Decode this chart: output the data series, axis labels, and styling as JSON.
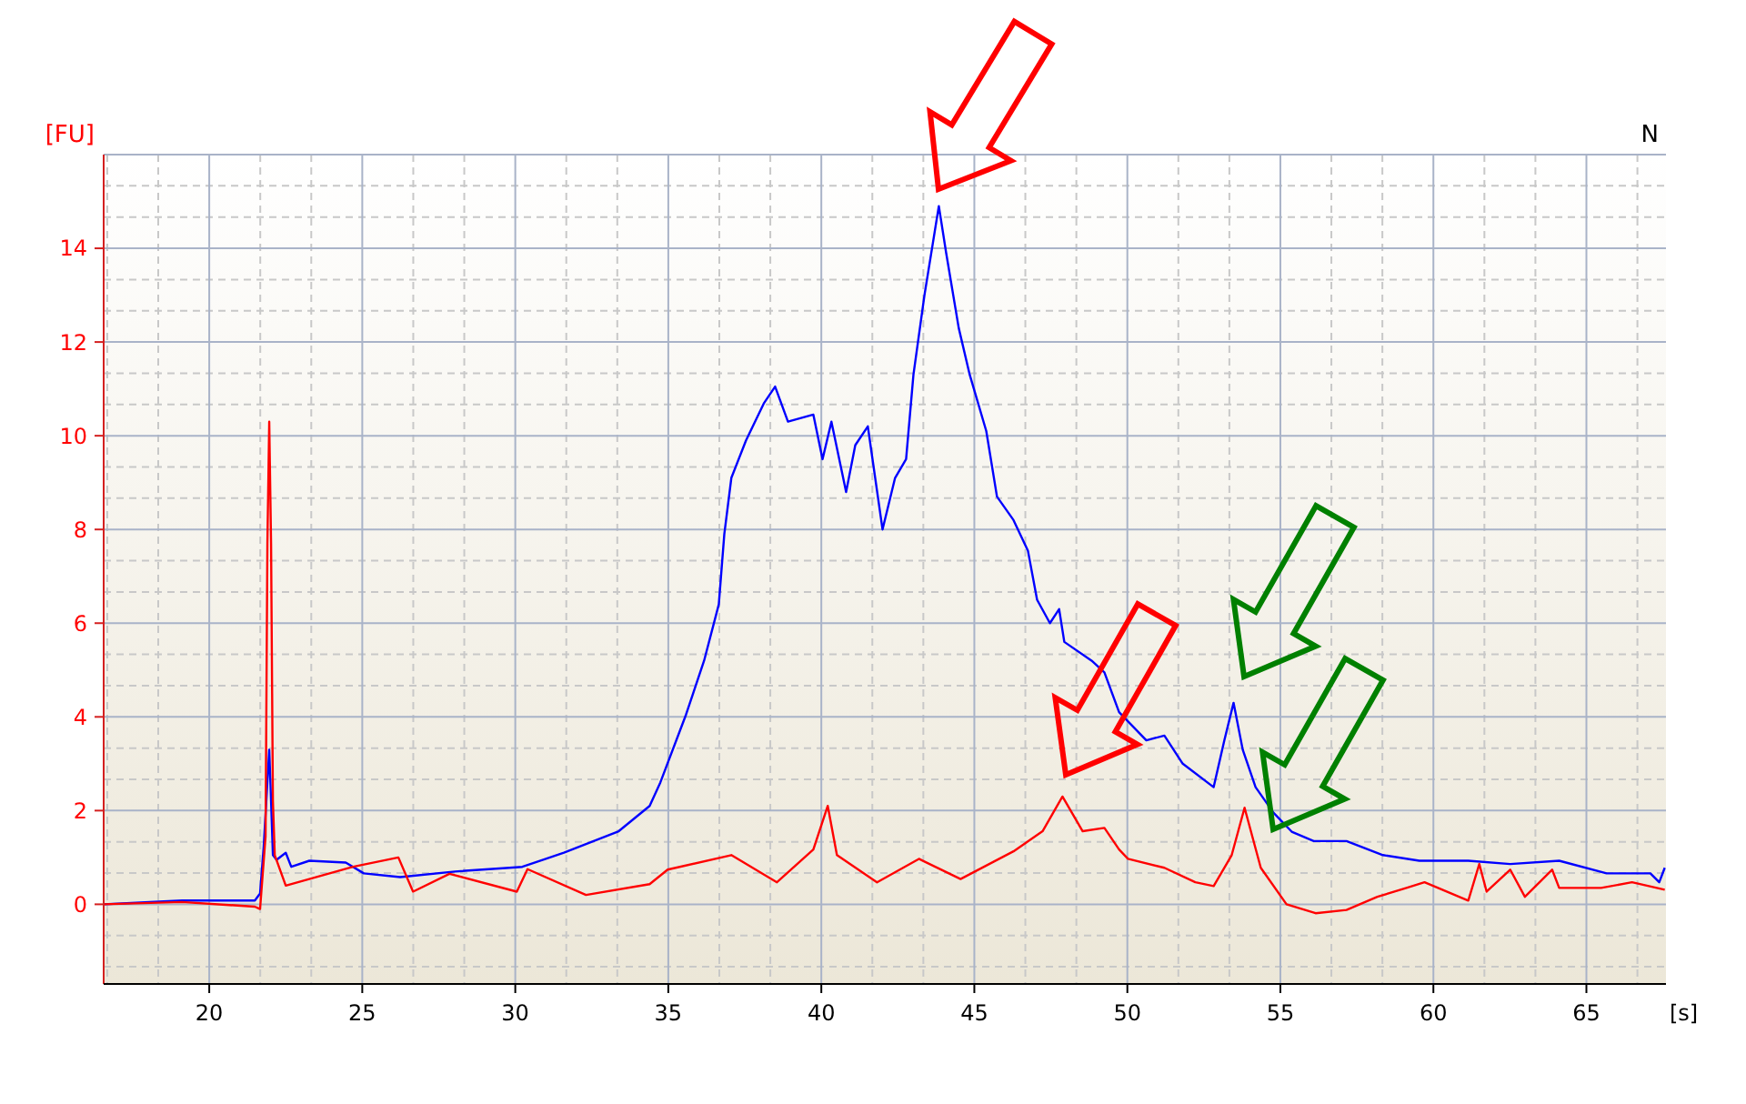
{
  "chart_data": {
    "type": "line",
    "xlabel": "[s]",
    "ylabel": "[FU]",
    "annotations": [
      "N"
    ],
    "xlim": [
      16.55,
      67.6
    ],
    "ylim": [
      -1.7,
      16
    ],
    "xticks": [
      20,
      25,
      30,
      35,
      40,
      45,
      50,
      55,
      60,
      65
    ],
    "yticks": [
      0,
      2,
      4,
      6,
      8,
      10,
      12,
      14
    ],
    "grid": true,
    "marker": "none",
    "line_style": "solid",
    "series": [
      {
        "color": "#0000ff",
        "x": [
          16.55,
          19.11,
          21.49,
          21.66,
          21.78,
          21.96,
          22.02,
          22.08,
          22.2,
          22.5,
          22.68,
          23.27,
          24.46,
          25.05,
          26.24,
          28.03,
          29.81,
          30.23,
          31.0,
          31.59,
          33.38,
          34.39,
          34.74,
          35.58,
          36.17,
          36.65,
          36.83,
          37.06,
          37.54,
          38.13,
          38.49,
          38.91,
          39.74,
          40.04,
          40.33,
          40.81,
          41.11,
          41.52,
          42.0,
          42.41,
          42.77,
          43.01,
          43.37,
          43.84,
          44.08,
          44.49,
          44.85,
          45.39,
          45.74,
          46.28,
          46.75,
          47.05,
          47.47,
          47.77,
          47.94,
          48.83,
          49.25,
          49.73,
          50.62,
          51.21,
          51.81,
          52.82,
          53.17,
          53.47,
          53.77,
          54.19,
          54.78,
          55.37,
          56.09,
          57.16,
          58.35,
          59.54,
          61.14,
          62.51,
          64.11,
          65.66,
          67.09,
          67.38,
          67.56
        ],
        "values": [
          0,
          0.08,
          0.08,
          0.23,
          1.24,
          3.3,
          2.2,
          1.05,
          0.95,
          1.1,
          0.8,
          0.93,
          0.89,
          0.66,
          0.58,
          0.7,
          0.78,
          0.8,
          0.97,
          1.1,
          1.56,
          2.1,
          2.6,
          4.05,
          5.2,
          6.4,
          7.9,
          9.1,
          9.9,
          10.7,
          11.05,
          10.3,
          10.45,
          9.5,
          10.3,
          8.8,
          9.8,
          10.2,
          8.0,
          9.1,
          9.5,
          11.3,
          13.0,
          14.9,
          13.9,
          12.3,
          11.3,
          10.1,
          8.7,
          8.2,
          7.55,
          6.5,
          6.0,
          6.3,
          5.6,
          5.2,
          4.95,
          4.1,
          3.5,
          3.6,
          3.0,
          2.5,
          3.5,
          4.3,
          3.3,
          2.5,
          1.95,
          1.55,
          1.35,
          1.35,
          1.05,
          0.93,
          0.93,
          0.86,
          0.93,
          0.66,
          0.66,
          0.47,
          0.78
        ]
      },
      {
        "color": "#ff0000",
        "x": [
          16.55,
          19.11,
          21.49,
          21.66,
          21.84,
          21.9,
          21.96,
          22.02,
          22.08,
          22.14,
          22.5,
          24.7,
          26.18,
          26.66,
          27.85,
          30.05,
          30.4,
          32.31,
          34.39,
          34.98,
          37.06,
          38.55,
          39.74,
          40.21,
          40.51,
          41.82,
          43.19,
          44.55,
          46.28,
          47.23,
          47.88,
          48.54,
          49.25,
          49.73,
          50.02,
          51.21,
          52.22,
          52.82,
          53.41,
          53.83,
          54.36,
          55.2,
          56.15,
          57.16,
          58.17,
          59.12,
          59.71,
          61.14,
          61.5,
          61.74,
          62.51,
          62.99,
          63.88,
          64.11,
          65.48,
          66.49,
          67.56
        ],
        "values": [
          0,
          0.05,
          -0.05,
          -0.1,
          1.45,
          7.7,
          10.3,
          7.7,
          2.2,
          1.05,
          0.4,
          0.8,
          1.0,
          0.27,
          0.65,
          0.27,
          0.75,
          0.2,
          0.43,
          0.74,
          1.05,
          0.47,
          1.17,
          2.1,
          1.05,
          0.47,
          0.97,
          0.54,
          1.13,
          1.56,
          2.3,
          1.56,
          1.63,
          1.17,
          0.97,
          0.78,
          0.47,
          0.39,
          1.05,
          2.06,
          0.78,
          0.0,
          -0.19,
          -0.12,
          0.16,
          0.35,
          0.47,
          0.08,
          0.86,
          0.27,
          0.74,
          0.16,
          0.74,
          0.35,
          0.35,
          0.47,
          0.31
        ]
      }
    ]
  }
}
